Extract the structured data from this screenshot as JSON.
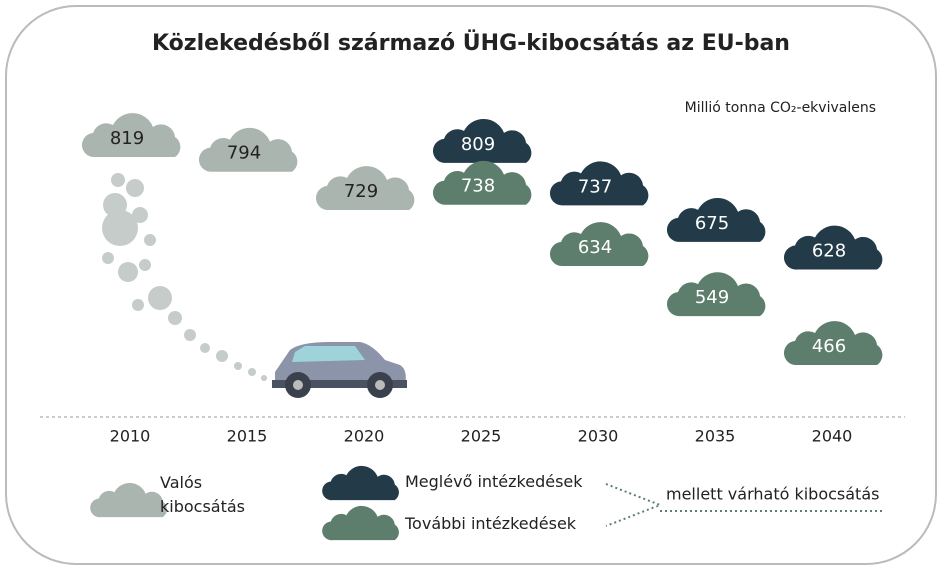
{
  "chart_data": {
    "type": "cloud",
    "title": "Közlekedésből származó ÜHG-kibocsátás az EU-ban",
    "subtitle": "Millió tonna CO₂-ekvivalens",
    "categories": [
      "2010",
      "2015",
      "2020",
      "2025",
      "2030",
      "2035",
      "2040"
    ],
    "series": [
      {
        "name": "Valós kibocsátás",
        "color": "#aab5b0",
        "values": [
          819,
          794,
          729,
          null,
          null,
          null,
          null
        ]
      },
      {
        "name": "Meglévő intézkedések",
        "color": "#233a48",
        "values": [
          null,
          null,
          null,
          809,
          737,
          675,
          628
        ]
      },
      {
        "name": "További intézkedések",
        "color": "#5e7e6d",
        "values": [
          null,
          null,
          null,
          738,
          634,
          549,
          466
        ]
      }
    ],
    "annotation": "mellett várható kibocsátás"
  }
}
